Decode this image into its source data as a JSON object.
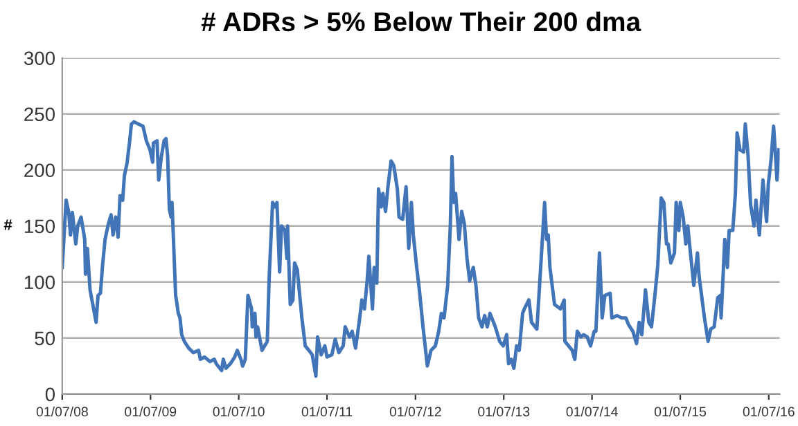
{
  "chart_data": {
    "type": "line",
    "title": "# ADRs > 5% Below Their 200 dma",
    "ylabel": "#",
    "x": [
      "2008-07-01",
      "2008-07-17",
      "2008-07-28",
      "2008-08-04",
      "2008-08-12",
      "2008-08-26",
      "2008-09-03",
      "2008-09-17",
      "2008-10-02",
      "2008-10-05",
      "2008-10-13",
      "2008-10-24",
      "2008-11-18",
      "2008-11-26",
      "2008-12-06",
      "2008-12-14",
      "2008-12-25",
      "2009-01-08",
      "2009-01-19",
      "2009-01-27",
      "2009-02-07",
      "2009-02-17",
      "2009-02-25",
      "2009-03-08",
      "2009-03-15",
      "2009-03-26",
      "2009-04-06",
      "2009-04-13",
      "2009-04-24",
      "2009-05-12",
      "2009-05-31",
      "2009-06-14",
      "2009-06-29",
      "2009-07-10",
      "2009-07-13",
      "2009-07-28",
      "2009-08-04",
      "2009-08-15",
      "2009-08-26",
      "2009-09-03",
      "2009-09-10",
      "2009-09-17",
      "2009-09-24",
      "2009-09-28",
      "2009-10-13",
      "2009-10-16",
      "2009-10-24",
      "2009-10-31",
      "2009-11-07",
      "2009-11-18",
      "2009-12-06",
      "2009-12-25",
      "2010-01-16",
      "2010-01-23",
      "2010-02-10",
      "2010-03-04",
      "2010-03-22",
      "2010-03-30",
      "2010-04-21",
      "2010-04-28",
      "2010-05-09",
      "2010-05-27",
      "2010-06-14",
      "2010-06-25",
      "2010-07-10",
      "2010-07-17",
      "2010-07-28",
      "2010-08-08",
      "2010-08-23",
      "2010-08-26",
      "2010-09-06",
      "2010-09-10",
      "2010-09-17",
      "2010-10-05",
      "2010-10-16",
      "2010-10-27",
      "2010-11-04",
      "2010-11-18",
      "2010-11-29",
      "2010-12-06",
      "2010-12-17",
      "2010-12-25",
      "2011-01-08",
      "2011-01-16",
      "2011-01-19",
      "2011-01-30",
      "2011-02-10",
      "2011-02-17",
      "2011-02-28",
      "2011-03-08",
      "2011-03-19",
      "2011-04-02",
      "2011-04-17",
      "2011-05-01",
      "2011-05-16",
      "2011-05-23",
      "2011-06-07",
      "2011-06-22",
      "2011-07-01",
      "2011-07-21",
      "2011-08-04",
      "2011-08-19",
      "2011-09-06",
      "2011-09-14",
      "2011-10-02",
      "2011-10-13",
      "2011-10-27",
      "2011-11-11",
      "2011-11-22",
      "2011-12-03",
      "2011-12-14",
      "2011-12-21",
      "2012-01-05",
      "2012-01-12",
      "2012-01-23",
      "2012-01-30",
      "2012-02-10",
      "2012-02-17",
      "2012-02-28",
      "2012-03-08",
      "2012-03-22",
      "2012-04-02",
      "2012-04-17",
      "2012-04-24",
      "2012-05-09",
      "2012-05-23",
      "2012-06-03",
      "2012-06-14",
      "2012-06-22",
      "2012-07-06",
      "2012-07-17",
      "2012-08-01",
      "2012-08-19",
      "2012-09-03",
      "2012-09-21",
      "2012-10-05",
      "2012-10-16",
      "2012-10-27",
      "2012-11-11",
      "2012-11-22",
      "2012-11-29",
      "2012-12-06",
      "2012-12-14",
      "2012-12-28",
      "2013-01-08",
      "2013-01-19",
      "2013-01-30",
      "2013-02-10",
      "2013-02-25",
      "2013-03-08",
      "2013-03-19",
      "2013-04-02",
      "2013-04-13",
      "2013-04-24",
      "2013-05-05",
      "2013-05-27",
      "2013-06-14",
      "2013-06-29",
      "2013-07-13",
      "2013-07-21",
      "2013-08-01",
      "2013-08-12",
      "2013-08-23",
      "2013-09-03",
      "2013-09-17",
      "2013-09-24",
      "2013-10-13",
      "2013-10-24",
      "2013-11-15",
      "2013-12-17",
      "2013-12-25",
      "2014-01-01",
      "2014-01-08",
      "2014-01-27",
      "2014-02-21",
      "2014-03-08",
      "2014-03-11",
      "2014-03-26",
      "2014-04-10",
      "2014-04-21",
      "2014-05-01",
      "2014-05-16",
      "2014-05-27",
      "2014-06-11",
      "2014-06-25",
      "2014-07-10",
      "2014-07-17",
      "2014-08-01",
      "2014-08-12",
      "2014-08-23",
      "2014-09-14",
      "2014-09-21",
      "2014-10-13",
      "2014-10-31",
      "2014-11-18",
      "2014-11-29",
      "2014-12-17",
      "2015-01-01",
      "2015-01-12",
      "2015-01-23",
      "2015-02-07",
      "2015-02-21",
      "2015-03-04",
      "2015-03-19",
      "2015-03-30",
      "2015-04-13",
      "2015-04-24",
      "2015-05-05",
      "2015-05-12",
      "2015-05-23",
      "2015-06-07",
      "2015-06-14",
      "2015-06-25",
      "2015-07-01",
      "2015-07-13",
      "2015-07-24",
      "2015-08-01",
      "2015-08-12",
      "2015-08-26",
      "2015-09-10",
      "2015-09-17",
      "2015-10-09",
      "2015-10-24",
      "2015-11-04",
      "2015-11-18",
      "2015-12-03",
      "2015-12-14",
      "2015-12-17",
      "2016-01-01",
      "2016-01-12",
      "2016-01-19",
      "2016-02-03",
      "2016-02-14",
      "2016-02-21",
      "2016-03-04",
      "2016-03-19",
      "2016-03-26",
      "2016-04-06",
      "2016-04-17",
      "2016-05-01",
      "2016-05-09",
      "2016-05-23",
      "2016-06-07",
      "2016-06-22",
      "2016-06-29",
      "2016-07-10",
      "2016-07-21",
      "2016-07-28",
      "2016-08-04",
      "2016-08-12"
    ],
    "series": [
      {
        "color": "#4275b8",
        "values": [
          113,
          173,
          162,
          142,
          162,
          134,
          150,
          158,
          138,
          107,
          130,
          93,
          64,
          88,
          90,
          113,
          138,
          152,
          160,
          142,
          158,
          140,
          177,
          173,
          195,
          206,
          226,
          241,
          243,
          241,
          239,
          226,
          218,
          207,
          224,
          226,
          191,
          212,
          226,
          228,
          212,
          165,
          158,
          171,
          88,
          84,
          72,
          68,
          53,
          47,
          41,
          37,
          39,
          31,
          33,
          29,
          31,
          27,
          21,
          31,
          23,
          27,
          33,
          39,
          31,
          25,
          31,
          88,
          76,
          60,
          72,
          51,
          60,
          39,
          43,
          47,
          105,
          171,
          167,
          171,
          109,
          150,
          146,
          121,
          150,
          80,
          84,
          117,
          111,
          93,
          68,
          43,
          39,
          35,
          16,
          51,
          35,
          43,
          33,
          35,
          49,
          37,
          43,
          60,
          51,
          56,
          41,
          64,
          84,
          76,
          101,
          123,
          76,
          113,
          99,
          183,
          167,
          179,
          163,
          183,
          208,
          204,
          183,
          158,
          156,
          185,
          130,
          171,
          142,
          113,
          93,
          60,
          25,
          39,
          43,
          56,
          72,
          68,
          97,
          150,
          212,
          171,
          179,
          138,
          163,
          152,
          121,
          101,
          113,
          97,
          68,
          60,
          70,
          60,
          72,
          60,
          47,
          43,
          53,
          27,
          31,
          23,
          43,
          39,
          72,
          76,
          84,
          64,
          58,
          171,
          138,
          142,
          113,
          80,
          76,
          84,
          47,
          43,
          39,
          31,
          56,
          51,
          53,
          51,
          43,
          56,
          56,
          126,
          68,
          88,
          90,
          68,
          70,
          68,
          68,
          62,
          56,
          45,
          64,
          53,
          93,
          64,
          60,
          90,
          115,
          175,
          171,
          134,
          134,
          117,
          126,
          171,
          146,
          171,
          158,
          134,
          150,
          126,
          97,
          126,
          105,
          68,
          47,
          58,
          60,
          86,
          88,
          68,
          138,
          113,
          146,
          146,
          179,
          233,
          218,
          216,
          241,
          214,
          169,
          150,
          173,
          142,
          191,
          154,
          187,
          208,
          239,
          216,
          191,
          218
        ]
      }
    ],
    "xlim": [
      "2008-07-01",
      "2016-08-15"
    ],
    "xticks": [
      {
        "value": "2008-07-01",
        "label": "01/07/08"
      },
      {
        "value": "2009-07-01",
        "label": "01/07/09"
      },
      {
        "value": "2010-07-01",
        "label": "01/07/10"
      },
      {
        "value": "2011-07-01",
        "label": "01/07/11"
      },
      {
        "value": "2012-07-01",
        "label": "01/07/12"
      },
      {
        "value": "2013-07-01",
        "label": "01/07/13"
      },
      {
        "value": "2014-07-01",
        "label": "01/07/14"
      },
      {
        "value": "2015-07-01",
        "label": "01/07/15"
      },
      {
        "value": "2016-07-01",
        "label": "01/07/16"
      }
    ],
    "ylim": [
      0,
      300
    ],
    "yticks": [
      0,
      50,
      100,
      150,
      200,
      250,
      300
    ],
    "grid": "y",
    "marker": "none",
    "line_style": "solid"
  }
}
